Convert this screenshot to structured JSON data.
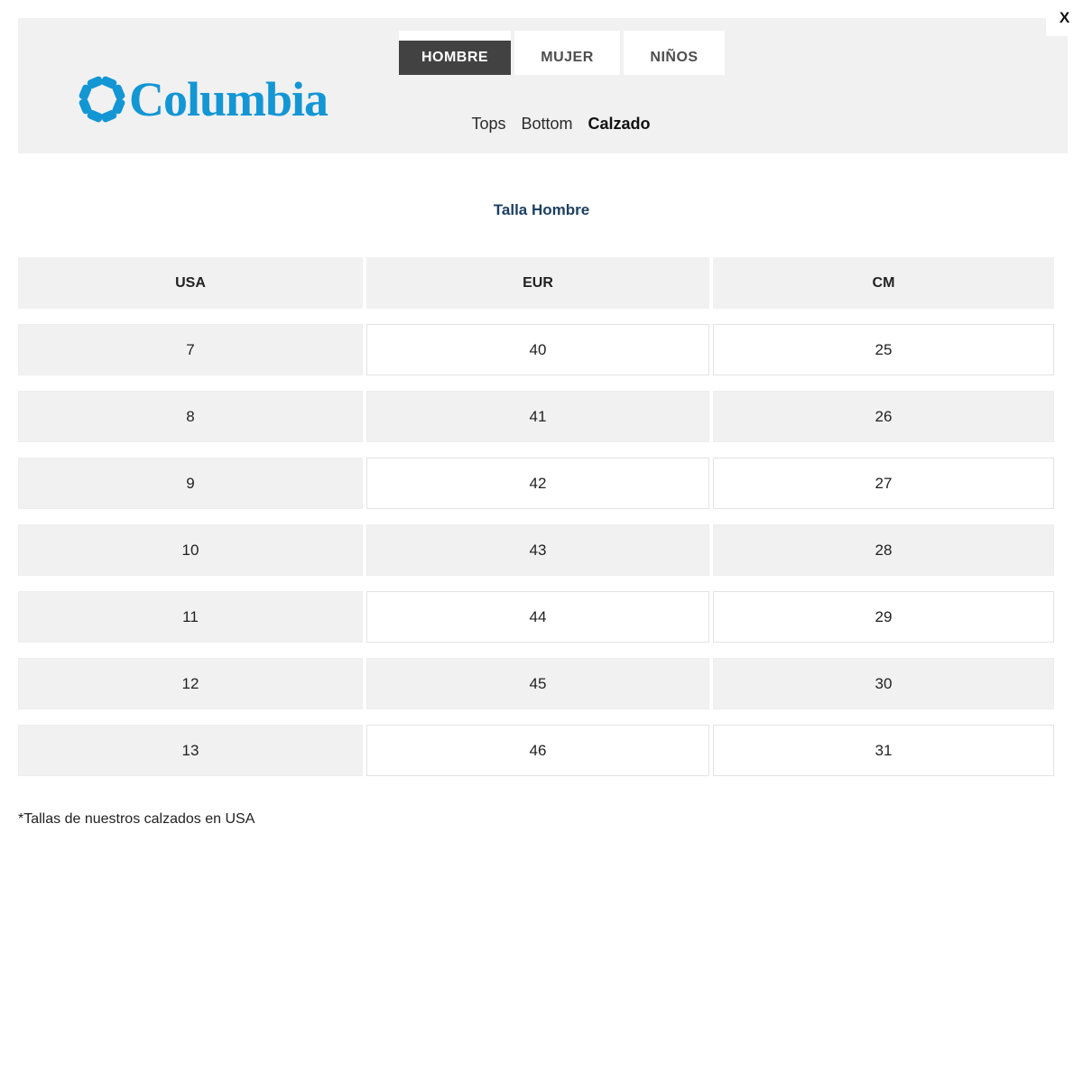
{
  "modal": {
    "close_label": "X"
  },
  "brand": {
    "wordmark": "Columbia"
  },
  "colors": {
    "brand_blue": "#1396d4",
    "title_navy": "#1d4063",
    "active_tab_bg": "#424242",
    "header_gray": "#f1f1f1"
  },
  "tabs": [
    {
      "label": "HOMBRE",
      "active": true
    },
    {
      "label": "MUJER",
      "active": false
    },
    {
      "label": "NIÑOS",
      "active": false
    }
  ],
  "categories": [
    {
      "label": "Tops",
      "active": false
    },
    {
      "label": "Bottom",
      "active": false
    },
    {
      "label": "Calzado",
      "active": true
    }
  ],
  "section_title": "Talla Hombre",
  "size_table": {
    "columns": [
      "USA",
      "EUR",
      "CM"
    ],
    "rows": [
      [
        "7",
        "40",
        "25"
      ],
      [
        "8",
        "41",
        "26"
      ],
      [
        "9",
        "42",
        "27"
      ],
      [
        "10",
        "43",
        "28"
      ],
      [
        "11",
        "44",
        "29"
      ],
      [
        "12",
        "45",
        "30"
      ],
      [
        "13",
        "46",
        "31"
      ]
    ]
  },
  "footnote": "*Tallas de nuestros calzados en USA"
}
